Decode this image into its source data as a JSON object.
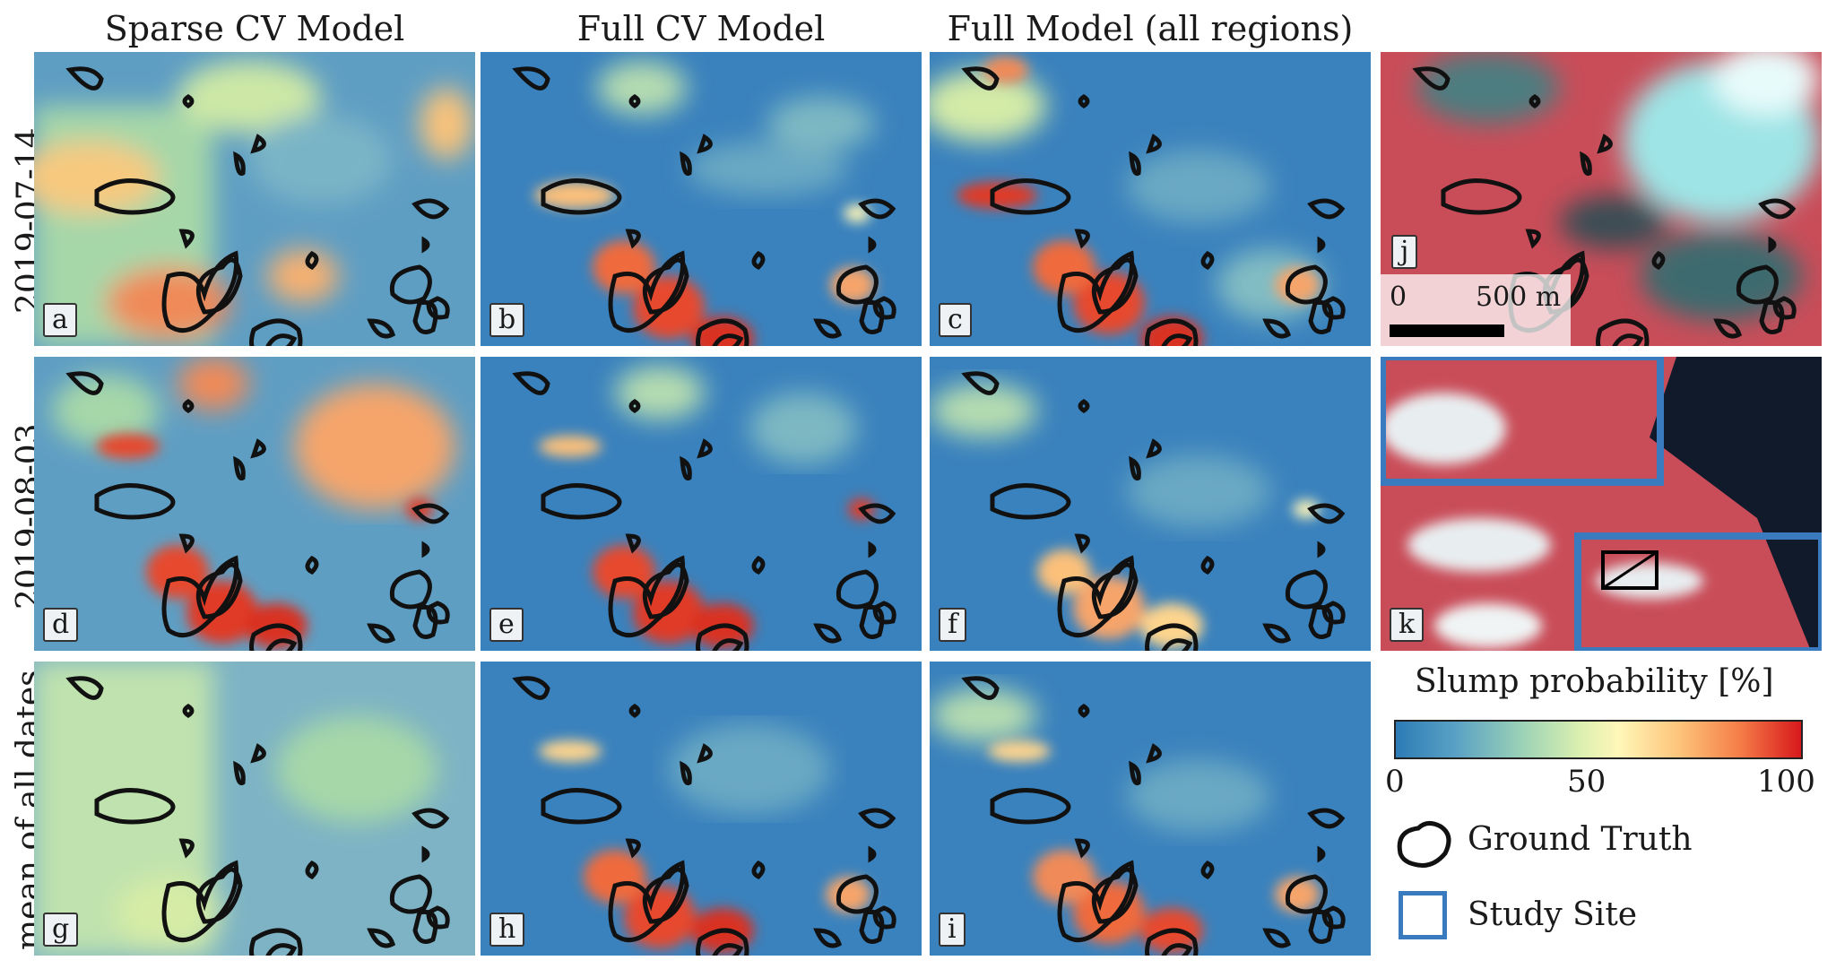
{
  "columns": [
    "Sparse CV Model",
    "Full CV Model",
    "Full Model (all regions)"
  ],
  "rows": [
    "2019-07-14",
    "2019-08-03",
    "mean of all dates"
  ],
  "panels": [
    "a",
    "b",
    "c",
    "d",
    "e",
    "f",
    "g",
    "h",
    "i"
  ],
  "satellite_labels": {
    "j": "j",
    "k": "k"
  },
  "scalebar": {
    "start": "0",
    "end": "500 m"
  },
  "legend": {
    "title": "Slump probability [%]",
    "ticks": [
      "0",
      "50",
      "100"
    ],
    "ground_truth": "Ground Truth",
    "study_site": "Study Site"
  },
  "colors": {
    "low": "#2c7bb6",
    "mid": "#fff7b8",
    "high": "#d7191c",
    "site": "#3a7bbf"
  }
}
